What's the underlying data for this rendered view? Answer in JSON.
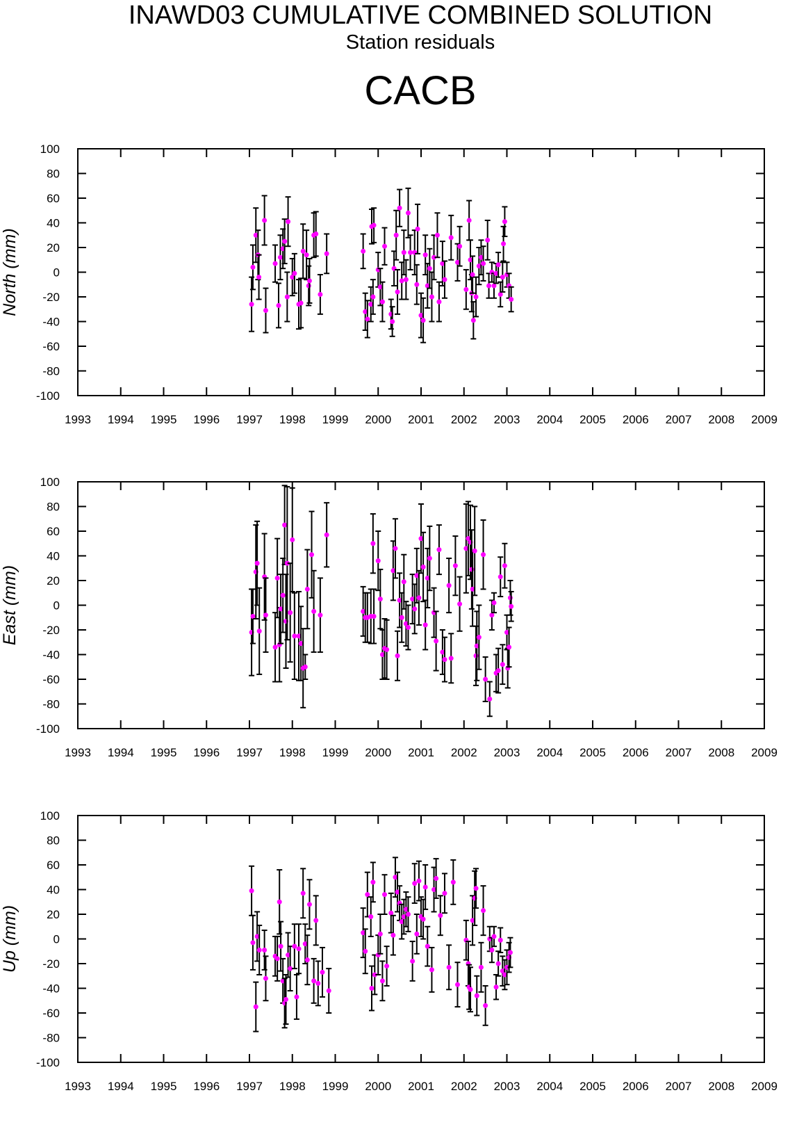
{
  "title": "INAWD03 CUMULATIVE COMBINED SOLUTION",
  "subtitle": "Station residuals",
  "station": "CACB",
  "chart_data": [
    {
      "type": "scatter",
      "ylabel": "North (mm)",
      "color": "#ff00ff",
      "xlim": [
        1993,
        2009
      ],
      "ylim": [
        -100,
        100
      ],
      "xticks": [
        1993,
        1994,
        1995,
        1996,
        1997,
        1998,
        1999,
        2000,
        2001,
        2002,
        2003,
        2004,
        2005,
        2006,
        2007,
        2008,
        2009
      ],
      "yticks": [
        -100,
        -80,
        -60,
        -40,
        -20,
        0,
        20,
        40,
        60,
        80,
        100
      ],
      "x": [
        1997.05,
        1997.08,
        1997.15,
        1997.2,
        1997.22,
        1997.35,
        1997.38,
        1997.6,
        1997.68,
        1997.72,
        1997.78,
        1997.82,
        1997.88,
        1997.9,
        1998.0,
        1998.05,
        1998.15,
        1998.2,
        1998.25,
        1998.33,
        1998.38,
        1998.4,
        1998.5,
        1998.55,
        1998.65,
        1998.8,
        1999.65,
        1999.7,
        1999.75,
        1999.83,
        1999.85,
        1999.88,
        1999.9,
        2000.0,
        2000.05,
        2000.1,
        2000.15,
        2000.3,
        2000.33,
        2000.37,
        2000.42,
        2000.45,
        2000.5,
        2000.55,
        2000.6,
        2000.65,
        2000.7,
        2000.75,
        2000.85,
        2000.9,
        2000.92,
        2001.0,
        2001.05,
        2001.1,
        2001.15,
        2001.2,
        2001.25,
        2001.3,
        2001.38,
        2001.42,
        2001.5,
        2001.55,
        2001.7,
        2001.85,
        2001.9,
        2002.05,
        2002.12,
        2002.15,
        2002.18,
        2002.2,
        2002.22,
        2002.28,
        2002.35,
        2002.4,
        2002.45,
        2002.55,
        2002.58,
        2002.65,
        2002.7,
        2002.75,
        2002.8,
        2002.85,
        2002.9,
        2002.92,
        2002.95,
        2003.0,
        2003.05,
        2003.1
      ],
      "values": [
        -26,
        4,
        30,
        14,
        -4,
        42,
        -31,
        7,
        -27,
        12,
        19,
        25,
        -20,
        41,
        -4,
        -1,
        -26,
        -25,
        17,
        14,
        -11,
        -7,
        30,
        31,
        -18,
        15,
        17,
        -32,
        -38,
        -26,
        37,
        -20,
        38,
        2,
        -12,
        -24,
        21,
        -34,
        -40,
        3,
        30,
        -16,
        52,
        -7,
        16,
        -6,
        48,
        16,
        16,
        -10,
        35,
        -35,
        -39,
        14,
        -11,
        3,
        -20,
        12,
        30,
        -24,
        7,
        -6,
        28,
        8,
        21,
        -14,
        42,
        10,
        -17,
        -2,
        -39,
        -20,
        5,
        12,
        7,
        26,
        -11,
        0,
        -11,
        -1,
        6,
        -18,
        -4,
        23,
        41,
        -2,
        -11,
        -22
      ],
      "errors": [
        22,
        18,
        22,
        20,
        18,
        20,
        18,
        15,
        18,
        18,
        16,
        18,
        20,
        20,
        15,
        16,
        20,
        20,
        22,
        20,
        16,
        18,
        18,
        18,
        16,
        16,
        14,
        15,
        15,
        14,
        14,
        14,
        14,
        14,
        15,
        16,
        15,
        12,
        12,
        14,
        20,
        18,
        15,
        15,
        18,
        16,
        20,
        14,
        18,
        16,
        20,
        18,
        18,
        16,
        18,
        16,
        20,
        18,
        18,
        16,
        18,
        15,
        18,
        15,
        16,
        16,
        16,
        16,
        15,
        15,
        15,
        16,
        15,
        14,
        14,
        16,
        10,
        8,
        10,
        8,
        10,
        10,
        12,
        14,
        12,
        10,
        10,
        10
      ]
    },
    {
      "type": "scatter",
      "ylabel": "East (mm)",
      "color": "#ff00ff",
      "xlim": [
        1993,
        2009
      ],
      "ylim": [
        -100,
        100
      ],
      "xticks": [
        1993,
        1994,
        1995,
        1996,
        1997,
        1998,
        1999,
        2000,
        2001,
        2002,
        2003,
        2004,
        2005,
        2006,
        2007,
        2008,
        2009
      ],
      "yticks": [
        -100,
        -80,
        -60,
        -40,
        -20,
        0,
        20,
        40,
        60,
        80,
        100
      ],
      "x": [
        1997.05,
        1997.08,
        1997.15,
        1997.18,
        1997.23,
        1997.35,
        1997.38,
        1997.6,
        1997.65,
        1997.7,
        1997.73,
        1997.78,
        1997.82,
        1997.85,
        1997.88,
        1997.95,
        1998.0,
        1998.05,
        1998.15,
        1998.2,
        1998.25,
        1998.3,
        1998.35,
        1998.45,
        1998.5,
        1998.65,
        1998.8,
        1999.65,
        1999.7,
        1999.75,
        1999.83,
        1999.88,
        1999.9,
        2000.0,
        2000.05,
        2000.1,
        2000.15,
        2000.2,
        2000.35,
        2000.4,
        2000.45,
        2000.5,
        2000.55,
        2000.6,
        2000.65,
        2000.7,
        2000.8,
        2000.85,
        2000.9,
        2000.95,
        2001.0,
        2001.05,
        2001.1,
        2001.15,
        2001.2,
        2001.3,
        2001.35,
        2001.42,
        2001.5,
        2001.55,
        2001.65,
        2001.7,
        2001.8,
        2001.9,
        2002.05,
        2002.1,
        2002.15,
        2002.18,
        2002.2,
        2002.25,
        2002.28,
        2002.3,
        2002.35,
        2002.45,
        2002.5,
        2002.6,
        2002.65,
        2002.7,
        2002.75,
        2002.8,
        2002.85,
        2002.9,
        2002.95,
        2003.0,
        2003.02,
        2003.05,
        2003.08,
        2003.1
      ],
      "values": [
        -22,
        -9,
        27,
        34,
        -21,
        23,
        -8,
        -34,
        22,
        -32,
        -3,
        8,
        65,
        -13,
        34,
        -6,
        53,
        -25,
        -25,
        -31,
        -51,
        -50,
        13,
        41,
        -5,
        -8,
        57,
        -5,
        -10,
        -10,
        -9,
        50,
        -9,
        36,
        5,
        -40,
        -35,
        -36,
        28,
        46,
        -41,
        4,
        -10,
        19,
        -15,
        -18,
        5,
        -3,
        24,
        6,
        54,
        31,
        -16,
        22,
        38,
        -6,
        -29,
        45,
        -38,
        -44,
        16,
        -43,
        32,
        1,
        46,
        54,
        51,
        29,
        13,
        44,
        -41,
        -33,
        -26,
        41,
        -60,
        -76,
        -8,
        2,
        -55,
        -53,
        23,
        -48,
        32,
        -22,
        -51,
        -34,
        6,
        -1
      ],
      "errors": [
        35,
        22,
        38,
        34,
        35,
        35,
        30,
        28,
        32,
        30,
        28,
        30,
        32,
        38,
        62,
        40,
        42,
        35,
        36,
        30,
        32,
        10,
        32,
        35,
        33,
        30,
        26,
        20,
        20,
        20,
        22,
        24,
        22,
        24,
        24,
        20,
        24,
        24,
        24,
        24,
        20,
        22,
        20,
        22,
        18,
        18,
        20,
        20,
        22,
        22,
        28,
        28,
        20,
        24,
        26,
        20,
        24,
        20,
        18,
        18,
        22,
        20,
        24,
        22,
        36,
        30,
        30,
        32,
        30,
        36,
        24,
        28,
        26,
        28,
        18,
        14,
        12,
        8,
        15,
        18,
        16,
        16,
        18,
        14,
        16,
        16,
        14,
        12
      ]
    },
    {
      "type": "scatter",
      "ylabel": "Up (mm)",
      "color": "#ff00ff",
      "xlim": [
        1993,
        2009
      ],
      "ylim": [
        -100,
        100
      ],
      "xticks": [
        1993,
        1994,
        1995,
        1996,
        1997,
        1998,
        1999,
        2000,
        2001,
        2002,
        2003,
        2004,
        2005,
        2006,
        2007,
        2008,
        2009
      ],
      "yticks": [
        -100,
        -80,
        -60,
        -40,
        -20,
        0,
        20,
        40,
        60,
        80,
        100
      ],
      "x": [
        1997.05,
        1997.08,
        1997.15,
        1997.18,
        1997.23,
        1997.35,
        1997.38,
        1997.6,
        1997.65,
        1997.7,
        1997.73,
        1997.78,
        1997.82,
        1997.85,
        1997.9,
        1997.95,
        1998.05,
        1998.1,
        1998.15,
        1998.25,
        1998.3,
        1998.35,
        1998.4,
        1998.5,
        1998.55,
        1998.6,
        1998.7,
        1998.85,
        1999.65,
        1999.7,
        1999.75,
        1999.83,
        1999.85,
        1999.88,
        1999.92,
        2000.0,
        2000.05,
        2000.1,
        2000.15,
        2000.2,
        2000.3,
        2000.35,
        2000.4,
        2000.45,
        2000.5,
        2000.55,
        2000.6,
        2000.65,
        2000.7,
        2000.8,
        2000.85,
        2000.9,
        2000.95,
        2001.0,
        2001.05,
        2001.1,
        2001.15,
        2001.25,
        2001.3,
        2001.35,
        2001.45,
        2001.55,
        2001.65,
        2001.75,
        2001.85,
        2002.05,
        2002.1,
        2002.12,
        2002.15,
        2002.2,
        2002.25,
        2002.28,
        2002.3,
        2002.4,
        2002.45,
        2002.5,
        2002.6,
        2002.65,
        2002.7,
        2002.75,
        2002.8,
        2002.85,
        2002.9,
        2002.95,
        2003.0,
        2003.05,
        2003.08
      ],
      "values": [
        39,
        -3,
        -55,
        2,
        -9,
        -9,
        -32,
        -14,
        -16,
        30,
        -6,
        -34,
        -52,
        -49,
        -13,
        -24,
        -6,
        -47,
        -8,
        37,
        -4,
        -17,
        28,
        -34,
        15,
        -36,
        -27,
        -42,
        5,
        -10,
        36,
        18,
        -40,
        46,
        -29,
        -13,
        4,
        -34,
        36,
        -22,
        21,
        3,
        50,
        38,
        29,
        14,
        18,
        24,
        20,
        -18,
        45,
        4,
        47,
        18,
        16,
        42,
        -6,
        -25,
        40,
        49,
        19,
        37,
        -23,
        46,
        -37,
        -1,
        -20,
        -39,
        -41,
        15,
        33,
        41,
        -46,
        -23,
        23,
        -54,
        0,
        -9,
        2,
        -39,
        -20,
        -1,
        -26,
        -29,
        -23,
        -15,
        -11
      ],
      "errors": [
        20,
        22,
        20,
        20,
        20,
        16,
        18,
        16,
        18,
        26,
        20,
        18,
        20,
        20,
        18,
        18,
        18,
        18,
        20,
        20,
        16,
        20,
        20,
        18,
        20,
        18,
        20,
        18,
        20,
        18,
        18,
        16,
        18,
        16,
        16,
        16,
        16,
        16,
        16,
        16,
        16,
        16,
        16,
        16,
        14,
        14,
        14,
        14,
        14,
        16,
        16,
        16,
        16,
        16,
        16,
        18,
        16,
        18,
        18,
        16,
        16,
        16,
        18,
        18,
        18,
        16,
        18,
        18,
        18,
        20,
        22,
        16,
        16,
        20,
        20,
        16,
        10,
        10,
        8,
        10,
        10,
        10,
        12,
        12,
        14,
        12,
        12
      ]
    }
  ]
}
